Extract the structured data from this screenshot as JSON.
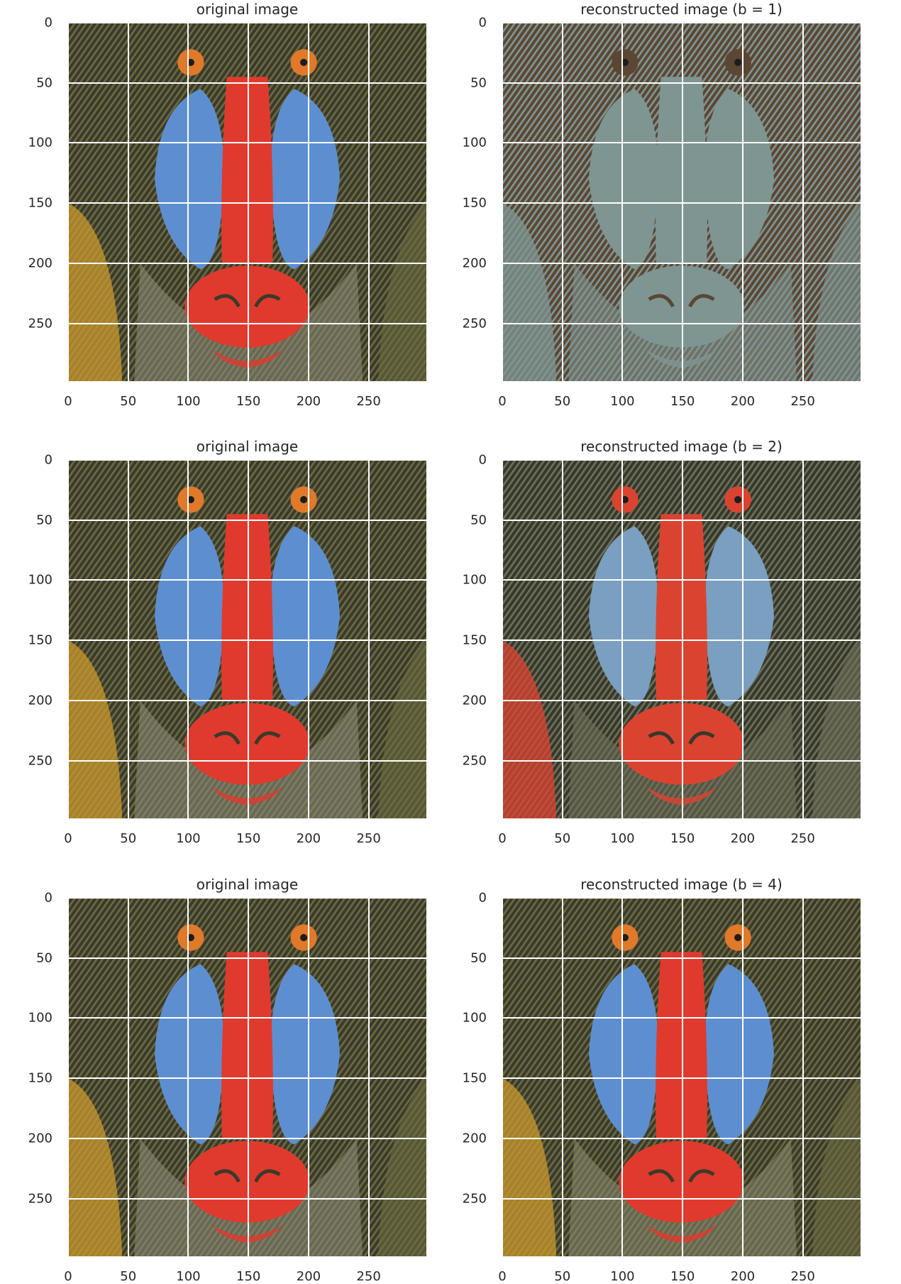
{
  "panels": [
    {
      "title": "original image",
      "kind": "original"
    },
    {
      "title": "reconstructed image (b = 1)",
      "kind": "b1"
    },
    {
      "title": "original image",
      "kind": "original"
    },
    {
      "title": "reconstructed image (b = 2)",
      "kind": "b2"
    },
    {
      "title": "original image",
      "kind": "original"
    },
    {
      "title": "reconstructed image (b = 4)",
      "kind": "b4"
    }
  ],
  "axes": {
    "xticks": [
      "0",
      "50",
      "100",
      "150",
      "200",
      "250"
    ],
    "yticks": [
      "0",
      "50",
      "100",
      "150",
      "200",
      "250"
    ],
    "xlim": [
      0,
      298
    ],
    "ylim": [
      298,
      0
    ],
    "grid": true
  },
  "colors": {
    "fur_dark": "#3b3a2a",
    "fur_olive": "#6b6a43",
    "fur_yellow": "#c99a2e",
    "blue": "#5d8fd0",
    "red": "#e03a2e",
    "eye": "#e0792a",
    "b1_dark": "#5b4634",
    "b1_light": "#7f9592",
    "b2_dark": "#36382b",
    "b2_olive": "#6f705a",
    "b2_blue": "#7a9fc0",
    "b2_red": "#db4331"
  }
}
